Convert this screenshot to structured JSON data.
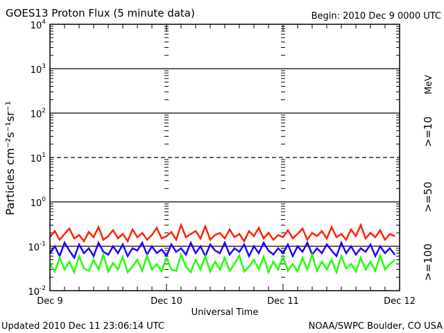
{
  "chart_data": {
    "type": "line",
    "title": "GOES13 Proton Flux (5 minute data)",
    "begin_label": "Begin: 2010 Dec 9 0000 UTC",
    "xlabel": "Universal Time",
    "ylabel": "Particles cm⁻²s⁻¹sr⁻¹",
    "yscale": "log",
    "ylim": [
      0.01,
      10000
    ],
    "ytick_labels": [
      {
        "base": "10",
        "exp": "4"
      },
      {
        "base": "10",
        "exp": "3"
      },
      {
        "base": "10",
        "exp": "2"
      },
      {
        "base": "10",
        "exp": "1"
      },
      {
        "base": "10",
        "exp": "0"
      },
      {
        "base": "10",
        "exp": "-1"
      },
      {
        "base": "10",
        "exp": "-2"
      }
    ],
    "xtick_labels": [
      "Dec 9",
      "Dec 10",
      "Dec 11",
      "Dec 12"
    ],
    "xlim": [
      "2010-12-09 00:00",
      "2010-12-12 00:00"
    ],
    "x_start": "2010-12-09 00:00",
    "x_interval_minutes": 60,
    "threshold_line": 10,
    "units_label": "MeV",
    "series": [
      {
        "name": ">=10",
        "color": "#ff2000",
        "values": [
          0.16,
          0.22,
          0.14,
          0.19,
          0.25,
          0.15,
          0.18,
          0.13,
          0.21,
          0.16,
          0.27,
          0.14,
          0.17,
          0.23,
          0.15,
          0.19,
          0.13,
          0.24,
          0.16,
          0.2,
          0.14,
          0.18,
          0.26,
          0.15,
          0.17,
          0.21,
          0.14,
          0.3,
          0.16,
          0.19,
          0.22,
          0.15,
          0.28,
          0.14,
          0.18,
          0.2,
          0.15,
          0.24,
          0.16,
          0.19,
          0.13,
          0.22,
          0.17,
          0.26,
          0.15,
          0.2,
          0.14,
          0.18,
          0.16,
          0.23,
          0.15,
          0.19,
          0.25,
          0.14,
          0.2,
          0.17,
          0.22,
          0.15,
          0.27,
          0.16,
          0.19,
          0.14,
          0.24,
          0.17,
          0.3,
          0.15,
          0.2,
          0.16,
          0.23,
          0.14,
          0.19,
          0.17
        ]
      },
      {
        "name": ">=50",
        "color": "#2000ff",
        "values": [
          0.07,
          0.1,
          0.06,
          0.12,
          0.08,
          0.055,
          0.11,
          0.07,
          0.09,
          0.06,
          0.12,
          0.075,
          0.065,
          0.1,
          0.07,
          0.11,
          0.06,
          0.09,
          0.08,
          0.12,
          0.065,
          0.1,
          0.07,
          0.085,
          0.06,
          0.11,
          0.075,
          0.09,
          0.065,
          0.12,
          0.07,
          0.1,
          0.06,
          0.11,
          0.08,
          0.07,
          0.12,
          0.065,
          0.09,
          0.075,
          0.11,
          0.06,
          0.1,
          0.07,
          0.12,
          0.08,
          0.065,
          0.09,
          0.07,
          0.11,
          0.06,
          0.1,
          0.075,
          0.12,
          0.065,
          0.09,
          0.07,
          0.11,
          0.08,
          0.06,
          0.12,
          0.07,
          0.1,
          0.065,
          0.09,
          0.075,
          0.11,
          0.06,
          0.1,
          0.07,
          0.09,
          0.065
        ]
      },
      {
        "name": ">=100",
        "color": "#20ff00",
        "values": [
          0.04,
          0.027,
          0.055,
          0.03,
          0.045,
          0.026,
          0.06,
          0.032,
          0.028,
          0.05,
          0.03,
          0.065,
          0.027,
          0.042,
          0.03,
          0.058,
          0.026,
          0.035,
          0.05,
          0.028,
          0.062,
          0.03,
          0.04,
          0.027,
          0.055,
          0.03,
          0.028,
          0.065,
          0.035,
          0.026,
          0.05,
          0.03,
          0.06,
          0.027,
          0.045,
          0.03,
          0.055,
          0.028,
          0.04,
          0.062,
          0.027,
          0.035,
          0.05,
          0.03,
          0.058,
          0.026,
          0.045,
          0.03,
          0.06,
          0.028,
          0.04,
          0.027,
          0.055,
          0.03,
          0.065,
          0.028,
          0.045,
          0.03,
          0.05,
          0.026,
          0.06,
          0.032,
          0.04,
          0.027,
          0.055,
          0.03,
          0.045,
          0.028,
          0.062,
          0.03,
          0.04,
          0.05
        ]
      }
    ]
  },
  "footer": {
    "updated": "Updated 2010 Dec 11 23:06:14 UTC",
    "source": "NOAA/SWPC Boulder, CO USA"
  }
}
